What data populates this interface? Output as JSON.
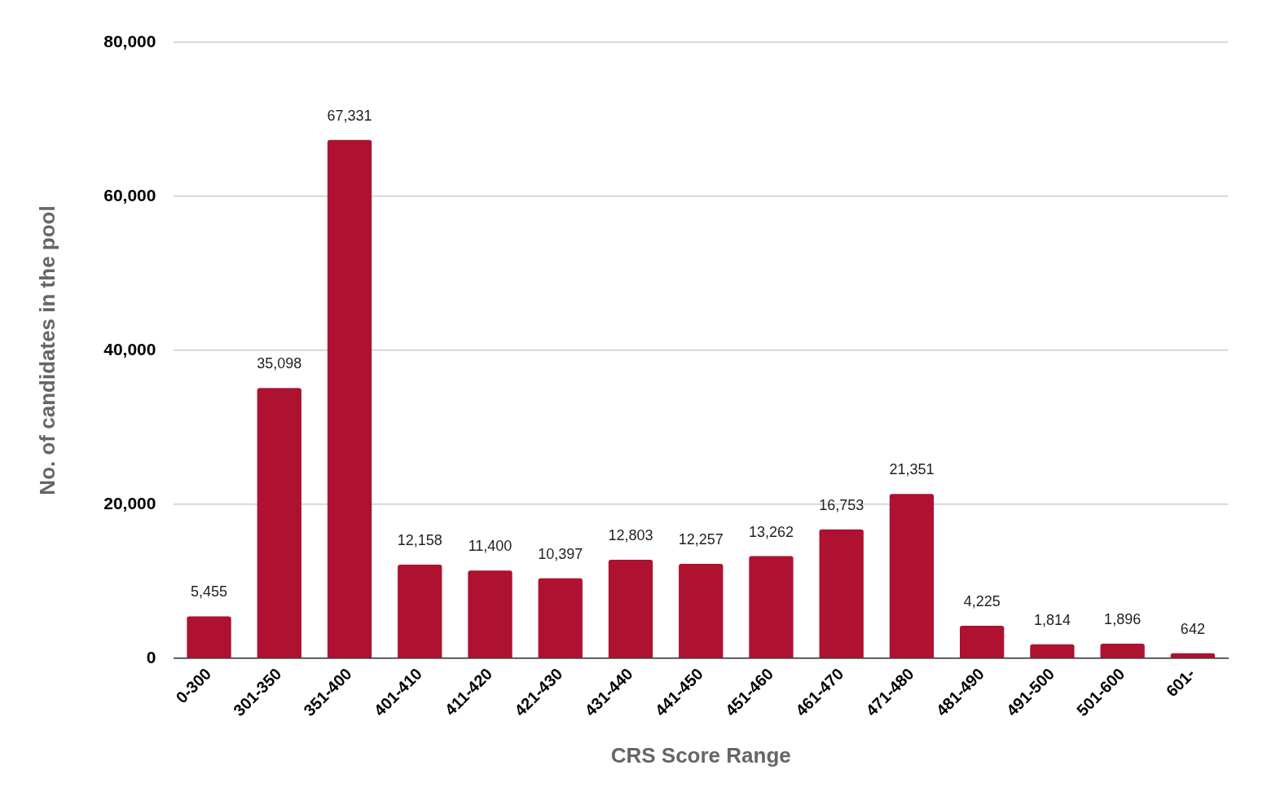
{
  "chart_data": {
    "type": "bar",
    "x_label": "CRS Score Range",
    "y_label": "No. of candidates in the pool",
    "categories": [
      "0-300",
      "301-350",
      "351-400",
      "401-410",
      "411-420",
      "421-430",
      "431-440",
      "441-450",
      "451-460",
      "461-470",
      "471-480",
      "481-490",
      "491-500",
      "501-600",
      "601-"
    ],
    "values": [
      5455,
      35098,
      67331,
      12158,
      11400,
      10397,
      12803,
      12257,
      13262,
      16753,
      21351,
      4225,
      1814,
      1896,
      642
    ],
    "value_labels": [
      "5,455",
      "35,098",
      "67,331",
      "12,158",
      "11,400",
      "10,397",
      "12,803",
      "12,257",
      "13,262",
      "16,753",
      "21,351",
      "4,225",
      "1,814",
      "1,896",
      "642"
    ],
    "color": "#ae1230",
    "ylim": [
      0,
      80000
    ],
    "yticks": [
      0,
      {
        "value": 20000,
        "label": "20,000"
      },
      {
        "value": 40000,
        "label": "40,000"
      },
      {
        "value": 60000,
        "label": "60,000"
      },
      {
        "value": 80000,
        "label": "80,000"
      }
    ],
    "grid": true,
    "data_labels": true
  }
}
